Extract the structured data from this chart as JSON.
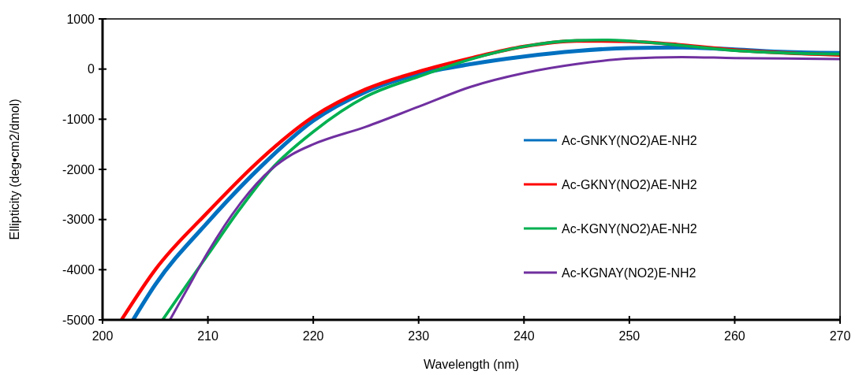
{
  "chart_data": {
    "type": "line",
    "xlabel": "Wavelength (nm)",
    "ylabel": "Ellipticity (deg•cm2/dmol)",
    "xlim": [
      200,
      270
    ],
    "xticks": [
      200,
      210,
      220,
      230,
      240,
      250,
      260,
      270
    ],
    "ylim": [
      -5000,
      1000
    ],
    "yticks": [
      -5000,
      -4000,
      -3000,
      -2000,
      -1000,
      0,
      1000
    ],
    "grid": false,
    "legend": "right",
    "marker": "none",
    "line_style": "solid",
    "series": [
      {
        "name": "Ac-GNKY(NO2)AE-NH2",
        "color": "#0070c0",
        "x": [
          202.9,
          205,
          210,
          215,
          220,
          225,
          230,
          235,
          240,
          245,
          250,
          255,
          260,
          265,
          270
        ],
        "values": [
          -5000,
          -4300,
          -3050,
          -1950,
          -1030,
          -450,
          -100,
          100,
          250,
          360,
          420,
          430,
          390,
          340,
          320
        ]
      },
      {
        "name": "Ac-GKNY(NO2)AE-NH2",
        "color": "#ff0000",
        "x": [
          201.8,
          205,
          210,
          215,
          220,
          225,
          230,
          235,
          240,
          245,
          250,
          255,
          260,
          265,
          270
        ],
        "values": [
          -5000,
          -4000,
          -2850,
          -1800,
          -950,
          -400,
          -50,
          220,
          450,
          560,
          550,
          480,
          380,
          320,
          280
        ]
      },
      {
        "name": "Ac-KGNY(NO2)AE-NH2",
        "color": "#00b050",
        "x": [
          205.7,
          208,
          210,
          213,
          216,
          220,
          225,
          230,
          235,
          240,
          245,
          248,
          250,
          255,
          260,
          265,
          270
        ],
        "values": [
          -5000,
          -4300,
          -3700,
          -2800,
          -2000,
          -1250,
          -550,
          -150,
          200,
          450,
          570,
          580,
          560,
          470,
          370,
          320,
          300
        ]
      },
      {
        "name": "Ac-KGNAY(NO2)E-NH2",
        "color": "#7030a0",
        "x": [
          206.4,
          208,
          210,
          213,
          216,
          218,
          220,
          225,
          230,
          235,
          240,
          245,
          250,
          255,
          260,
          265,
          270
        ],
        "values": [
          -5000,
          -4400,
          -3650,
          -2700,
          -2000,
          -1700,
          -1500,
          -1150,
          -750,
          -350,
          -80,
          100,
          210,
          240,
          220,
          210,
          200
        ]
      }
    ]
  }
}
